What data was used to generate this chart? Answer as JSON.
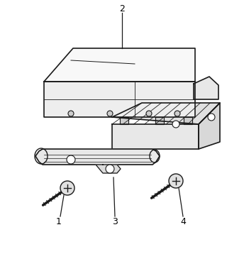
{
  "background_color": "#ffffff",
  "line_color": "#1a1a1a",
  "label_color": "#000000",
  "fig_w": 3.44,
  "fig_h": 3.65,
  "dpi": 100
}
